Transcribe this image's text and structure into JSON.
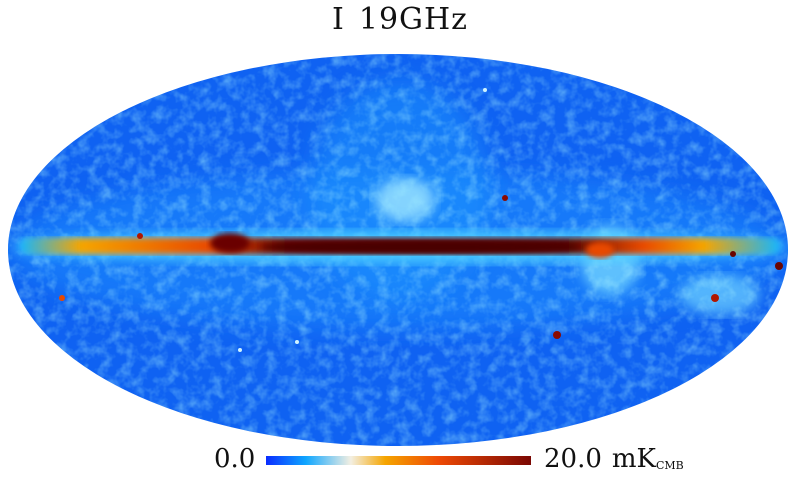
{
  "title": {
    "stokes": "I",
    "frequency": "19GHz"
  },
  "colorbar": {
    "min_label": "0.0",
    "max_label": "20.0",
    "unit": "mK",
    "unit_subscript": "CMB",
    "colors": [
      "#0a2cff",
      "#0fa6ff",
      "#f3efe2",
      "#f5a500",
      "#ee4a05",
      "#7a0703"
    ]
  },
  "map": {
    "projection": "mollweide",
    "background_color": "#1060f0",
    "plane_color": "#5a0500"
  }
}
